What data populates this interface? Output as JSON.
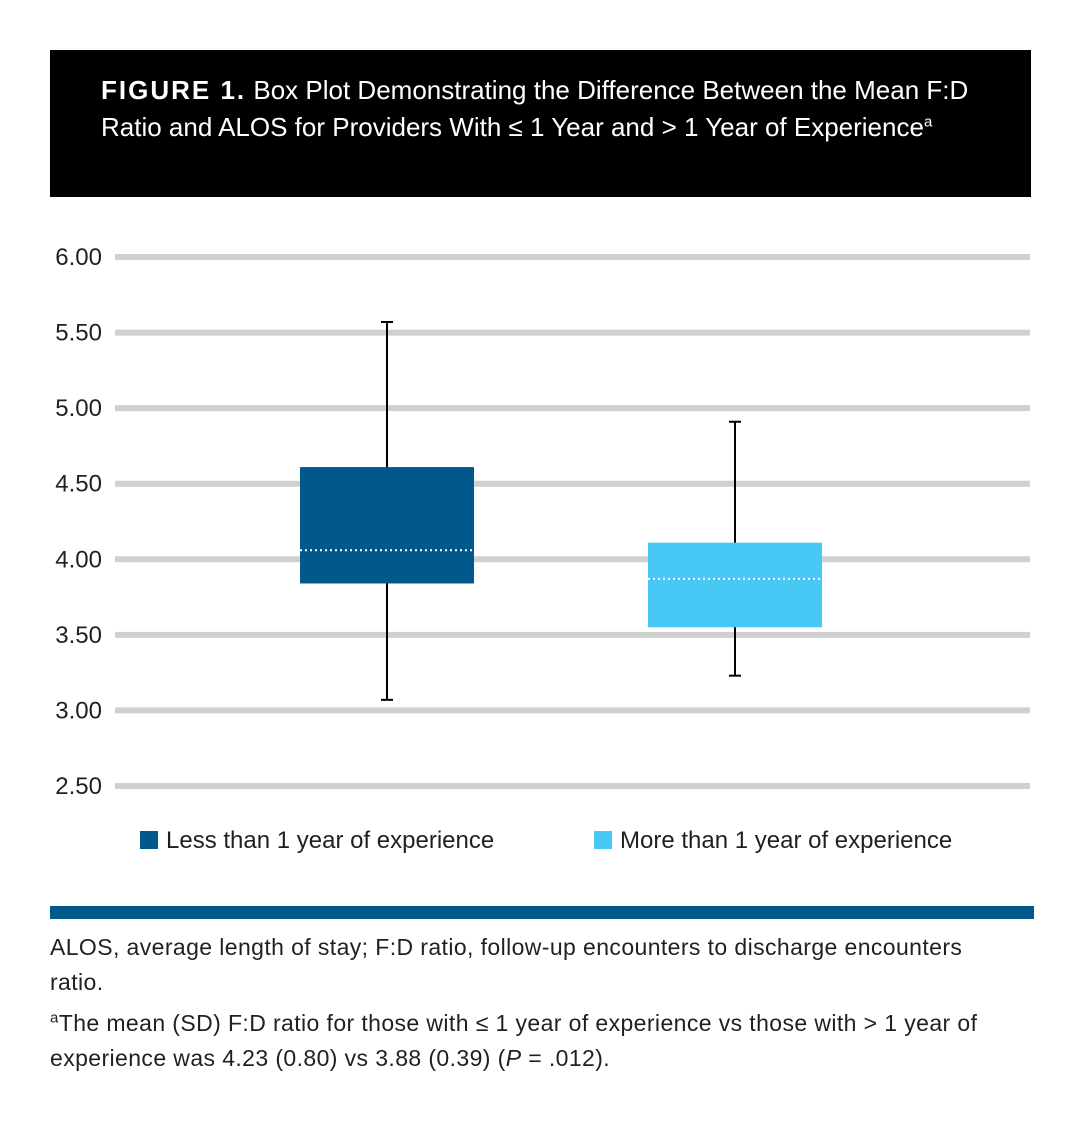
{
  "figure": {
    "label": "FIGURE 1.",
    "title": "Box Plot Demonstrating the Difference Between the Mean F:D Ratio and ALOS for Providers With ≤ 1 Year and > 1 Year of Experience",
    "title_sup": "a"
  },
  "chart_data": {
    "type": "box",
    "ylim": [
      2.5,
      6.0
    ],
    "yticks": [
      "6.00",
      "5.50",
      "5.00",
      "4.50",
      "4.00",
      "3.50",
      "3.00",
      "2.50"
    ],
    "ytick_values": [
      6.0,
      5.5,
      5.0,
      4.5,
      4.0,
      3.5,
      3.0,
      2.5
    ],
    "grid": true,
    "legend_position": "bottom",
    "series": [
      {
        "name": "Less than 1 year of experience",
        "color": "#00598a",
        "min": 3.07,
        "q1": 3.84,
        "median": 4.06,
        "q3": 4.61,
        "max": 5.57
      },
      {
        "name": "More than 1 year of experience",
        "color": "#48c8f5",
        "min": 3.23,
        "q1": 3.55,
        "median": 3.87,
        "q3": 4.11,
        "max": 4.91
      }
    ]
  },
  "footnotes": {
    "abbreviations": "ALOS, average length of stay; F:D ratio, follow-up encounters to discharge encounters ratio.",
    "note_marker": "a",
    "note_part1": "The mean (SD) F:D ratio for those with ≤ 1 year of experience vs those with > 1 year of experience was 4.23 (0.80) vs 3.88 (0.39) (",
    "note_p": "P",
    "note_part2": " = .012)."
  }
}
